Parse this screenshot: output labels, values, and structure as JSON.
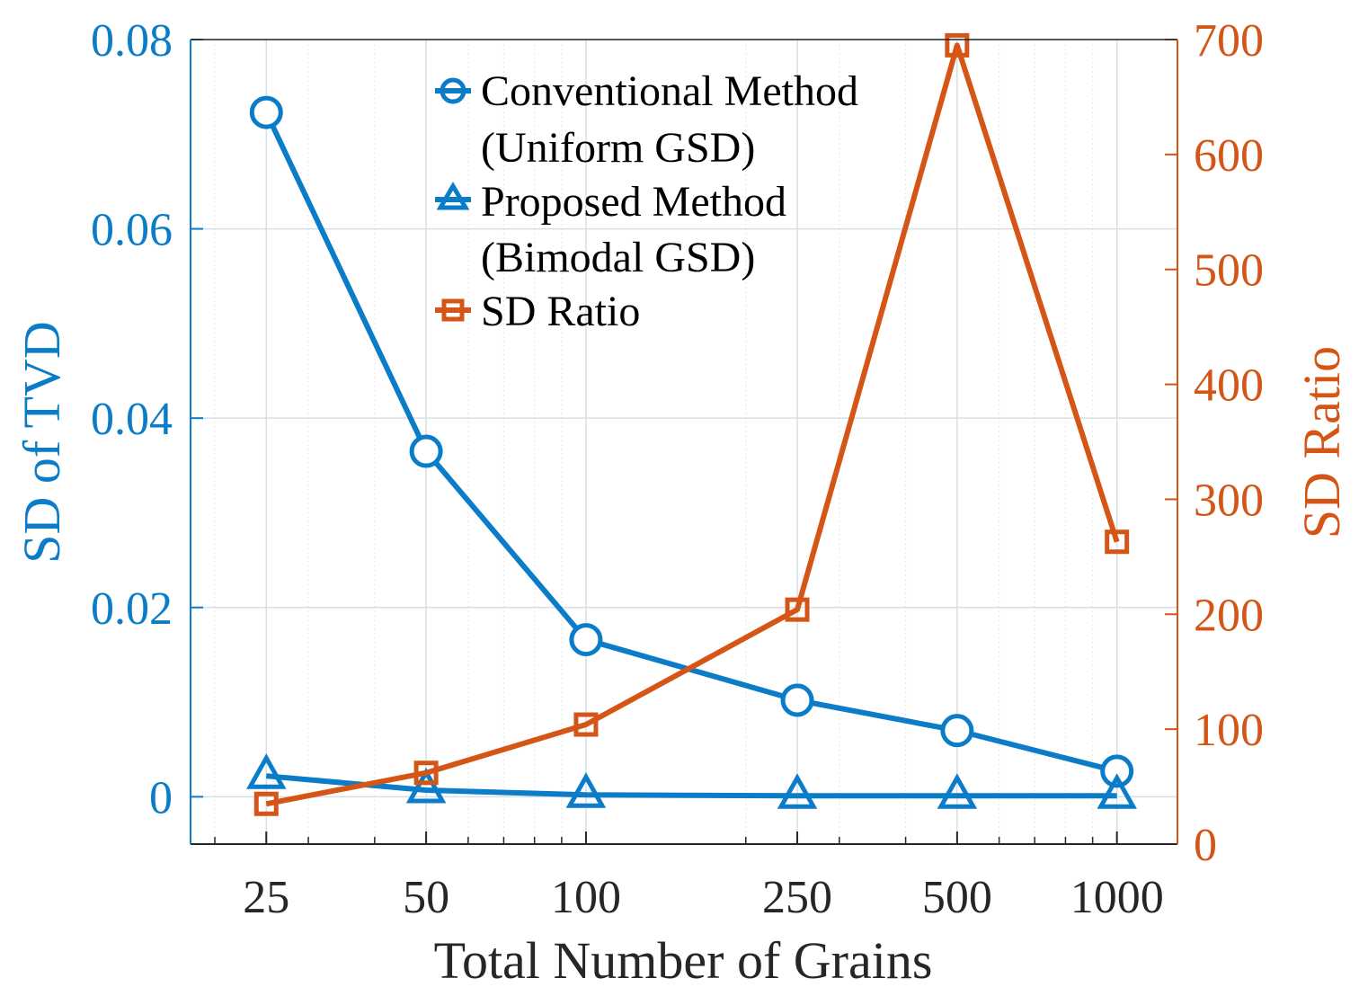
{
  "chart_data": {
    "type": "line",
    "xscale": "log",
    "x": [
      25,
      50,
      100,
      250,
      500,
      1000
    ],
    "xticks": [
      "25",
      "50",
      "100",
      "250",
      "500",
      "1000"
    ],
    "xlim": [
      18,
      1300
    ],
    "xlabel": "Total Number of Grains",
    "left_axis": {
      "label": "SD of TVD",
      "ylim": [
        -0.005,
        0.08
      ],
      "ticks": [
        "0",
        "0.02",
        "0.04",
        "0.06",
        "0.08"
      ],
      "tick_values": [
        0,
        0.02,
        0.04,
        0.06,
        0.08
      ],
      "color": "#0a7cc8"
    },
    "right_axis": {
      "label": "SD Ratio",
      "ylim": [
        0,
        700
      ],
      "ticks": [
        "0",
        "100",
        "200",
        "300",
        "400",
        "500",
        "600",
        "700"
      ],
      "tick_values": [
        0,
        100,
        200,
        300,
        400,
        500,
        600,
        700
      ],
      "color": "#d45516"
    },
    "series": [
      {
        "name_lines": [
          "Conventional Method",
          "(Uniform GSD)"
        ],
        "axis": "left",
        "marker": "circle",
        "color": "#0a7cc8",
        "values": [
          0.0723,
          0.0365,
          0.0166,
          0.0102,
          0.007,
          0.0027
        ]
      },
      {
        "name_lines": [
          "Proposed Method",
          "(Bimodal GSD)"
        ],
        "axis": "left",
        "marker": "triangle",
        "color": "#0a7cc8",
        "values": [
          0.0022,
          0.0007,
          0.0002,
          0.0001,
          0.0001,
          0.0001
        ]
      },
      {
        "name_lines": [
          "SD Ratio"
        ],
        "axis": "right",
        "marker": "square",
        "color": "#d45516",
        "values": [
          35,
          62,
          104,
          204,
          695,
          263
        ]
      }
    ],
    "grid": true,
    "legend": "top-center"
  }
}
